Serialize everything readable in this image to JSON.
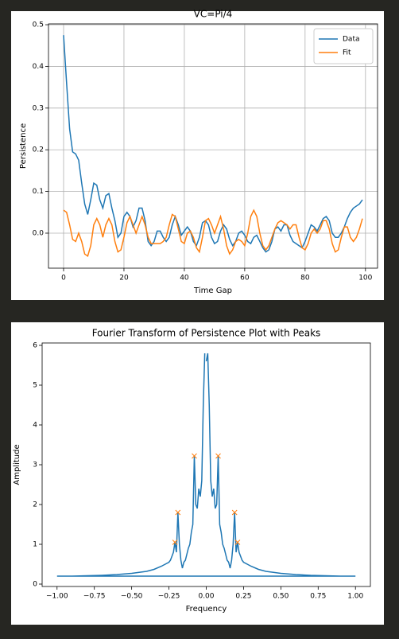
{
  "chart_data": [
    {
      "type": "line",
      "title": "VC=Pi/4",
      "xlabel": "Time Gap",
      "ylabel": "Persistence",
      "x": [
        0,
        1,
        2,
        3,
        4,
        5,
        6,
        7,
        8,
        9,
        10,
        11,
        12,
        13,
        14,
        15,
        16,
        17,
        18,
        19,
        20,
        21,
        22,
        23,
        24,
        25,
        26,
        27,
        28,
        29,
        30,
        31,
        32,
        33,
        34,
        35,
        36,
        37,
        38,
        39,
        40,
        41,
        42,
        43,
        44,
        45,
        46,
        47,
        48,
        49,
        50,
        51,
        52,
        53,
        54,
        55,
        56,
        57,
        58,
        59,
        60,
        61,
        62,
        63,
        64,
        65,
        66,
        67,
        68,
        69,
        70,
        71,
        72,
        73,
        74,
        75,
        76,
        77,
        78,
        79,
        80,
        81,
        82,
        83,
        84,
        85,
        86,
        87,
        88,
        89,
        90,
        91,
        92,
        93,
        94,
        95,
        96,
        97,
        98,
        99
      ],
      "series": [
        {
          "name": "Data",
          "color": "#1f77b4",
          "values": [
            0.475,
            0.36,
            0.25,
            0.195,
            0.19,
            0.175,
            0.12,
            0.07,
            0.045,
            0.08,
            0.12,
            0.115,
            0.08,
            0.06,
            0.09,
            0.095,
            0.06,
            0.03,
            -0.01,
            0.0,
            0.04,
            0.05,
            0.04,
            0.015,
            0.03,
            0.06,
            0.06,
            0.03,
            -0.02,
            -0.03,
            -0.02,
            0.005,
            0.005,
            -0.01,
            -0.02,
            -0.01,
            0.02,
            0.04,
            0.02,
            -0.005,
            0.005,
            0.015,
            0.005,
            -0.02,
            -0.03,
            -0.01,
            0.025,
            0.03,
            0.02,
            -0.01,
            -0.025,
            -0.02,
            0.005,
            0.02,
            0.01,
            -0.015,
            -0.03,
            -0.02,
            0.0,
            0.005,
            -0.005,
            -0.02,
            -0.025,
            -0.01,
            -0.005,
            -0.02,
            -0.035,
            -0.045,
            -0.04,
            -0.02,
            0.01,
            0.015,
            0.005,
            0.02,
            0.02,
            -0.005,
            -0.02,
            -0.025,
            -0.03,
            -0.035,
            -0.02,
            0.0,
            0.02,
            0.015,
            0.005,
            0.02,
            0.035,
            0.04,
            0.03,
            0.0,
            -0.01,
            -0.01,
            0.0,
            0.015,
            0.035,
            0.05,
            0.06,
            0.065,
            0.07,
            0.08
          ]
        },
        {
          "name": "Fit",
          "color": "#ff7f0e",
          "values": [
            0.055,
            0.05,
            0.02,
            -0.015,
            -0.02,
            0.0,
            -0.02,
            -0.05,
            -0.055,
            -0.03,
            0.02,
            0.035,
            0.02,
            -0.01,
            0.02,
            0.035,
            0.02,
            -0.02,
            -0.045,
            -0.04,
            -0.01,
            0.025,
            0.04,
            0.02,
            0.0,
            0.02,
            0.04,
            0.02,
            -0.01,
            -0.025,
            -0.025,
            -0.025,
            -0.025,
            -0.02,
            -0.01,
            0.02,
            0.045,
            0.04,
            0.01,
            -0.02,
            -0.025,
            0.0,
            0.005,
            -0.01,
            -0.035,
            -0.045,
            -0.01,
            0.03,
            0.035,
            0.02,
            0.0,
            0.02,
            0.04,
            0.01,
            -0.03,
            -0.05,
            -0.04,
            -0.02,
            -0.015,
            -0.02,
            -0.03,
            0.0,
            0.04,
            0.055,
            0.04,
            0.0,
            -0.03,
            -0.04,
            -0.03,
            -0.01,
            0.01,
            0.025,
            0.03,
            0.025,
            0.02,
            0.01,
            0.02,
            0.02,
            -0.01,
            -0.035,
            -0.04,
            -0.025,
            0.0,
            0.01,
            0.0,
            0.01,
            0.03,
            0.03,
            0.01,
            -0.025,
            -0.045,
            -0.04,
            -0.01,
            0.015,
            0.015,
            -0.01,
            -0.02,
            -0.01,
            0.01,
            0.035
          ]
        }
      ],
      "xlim": [
        -5,
        104
      ],
      "ylim": [
        -0.084,
        0.502
      ],
      "xticks": [
        0,
        20,
        40,
        60,
        80,
        100
      ],
      "yticks": [
        {
          "value": 0,
          "label": "0.0"
        },
        0.1,
        0.2,
        0.3,
        0.4,
        0.5
      ],
      "grid": true,
      "legend": "upper right"
    },
    {
      "type": "line",
      "title": "Fourier Transform of Persistence Plot with Peaks",
      "xlabel": "Frequency",
      "ylabel": "Amplitude",
      "series": [
        {
          "color": "#1f77b4",
          "x": [
            0,
            0.01,
            0.02,
            0.03,
            0.04,
            0.05,
            0.06,
            0.07,
            0.08,
            0.09,
            0.1,
            0.11,
            0.12,
            0.13,
            0.14,
            0.15,
            0.16,
            0.17,
            0.18,
            0.19,
            0.2,
            0.21,
            0.22,
            0.23,
            0.24,
            0.25,
            0.3,
            0.35,
            0.4,
            0.5,
            0.6,
            0.7,
            0.8,
            0.9,
            1.0,
            -1.0,
            -0.9,
            -0.8,
            -0.7,
            -0.6,
            -0.5,
            -0.4,
            -0.35,
            -0.3,
            -0.25,
            -0.24,
            -0.23,
            -0.22,
            -0.21,
            -0.2,
            -0.19,
            -0.18,
            -0.17,
            -0.16,
            -0.15,
            -0.14,
            -0.13,
            -0.12,
            -0.11,
            -0.1,
            -0.09,
            -0.08,
            -0.07,
            -0.06,
            -0.05,
            -0.04,
            -0.03,
            -0.02,
            -0.01
          ],
          "values": [
            5.6,
            5.8,
            4.5,
            2.6,
            2.2,
            2.4,
            1.9,
            2.0,
            3.22,
            1.5,
            1.3,
            1.0,
            0.9,
            0.75,
            0.6,
            0.55,
            0.4,
            0.6,
            1.0,
            1.8,
            0.8,
            1.05,
            0.8,
            0.7,
            0.6,
            0.55,
            0.45,
            0.37,
            0.32,
            0.27,
            0.24,
            0.22,
            0.21,
            0.2,
            0.2,
            0.2,
            0.2,
            0.21,
            0.22,
            0.24,
            0.27,
            0.32,
            0.37,
            0.45,
            0.55,
            0.6,
            0.7,
            0.8,
            1.05,
            0.8,
            1.8,
            1.0,
            0.6,
            0.4,
            0.55,
            0.6,
            0.75,
            0.9,
            1.0,
            1.3,
            1.5,
            3.22,
            2.0,
            1.9,
            2.4,
            2.2,
            2.6,
            4.5,
            5.8
          ]
        },
        {
          "color": "#ff7f0e",
          "marker": "x",
          "x": [
            -0.21,
            -0.19,
            -0.08,
            0.08,
            0.19,
            0.21
          ],
          "values": [
            1.05,
            1.8,
            3.22,
            3.22,
            1.8,
            1.05
          ]
        }
      ],
      "xlim": [
        -1.1,
        1.1
      ],
      "ylim": [
        -0.06,
        6.06
      ],
      "xticks": [
        {
          "value": -1,
          "label": "−1.00"
        },
        {
          "value": -0.75,
          "label": "−0.75"
        },
        {
          "value": -0.5,
          "label": "−0.50"
        },
        {
          "value": -0.25,
          "label": "−0.25"
        },
        {
          "value": 0,
          "label": "0.00"
        },
        {
          "value": 0.25,
          "label": "0.25"
        },
        {
          "value": 0.5,
          "label": "0.50"
        },
        {
          "value": 0.75,
          "label": "0.75"
        },
        {
          "value": 1,
          "label": "1.00"
        }
      ],
      "yticks": [
        0,
        1,
        2,
        3,
        4,
        5,
        6
      ],
      "grid": false
    }
  ]
}
